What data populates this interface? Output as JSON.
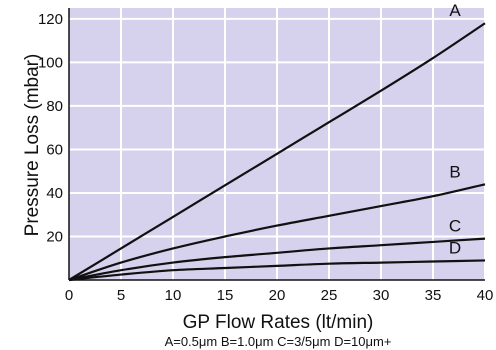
{
  "chart_data": {
    "type": "line",
    "xlabel": "GP Flow Rates (lt/min)",
    "ylabel": "Pressure Loss (mbar)",
    "footnote": "A=0.5μm B=1.0μm C=3/5μm D=10μm+",
    "xlim": [
      0,
      40
    ],
    "ylim": [
      0,
      125
    ],
    "x_ticks": [
      "0",
      "5",
      "10",
      "15",
      "20",
      "25",
      "30",
      "35",
      "40"
    ],
    "y_ticks": [
      "20",
      "40",
      "60",
      "80",
      "100",
      "120"
    ],
    "grid": true,
    "background_color": "#d6d1ec",
    "grid_color": "#ffffff",
    "line_color": "#111111",
    "series": [
      {
        "name": "A",
        "x": [
          0,
          5,
          10,
          15,
          20,
          25,
          30,
          35,
          40
        ],
        "y": [
          0,
          14.5,
          29,
          43.5,
          58,
          72.5,
          87,
          102,
          118
        ]
      },
      {
        "name": "B",
        "x": [
          0,
          5,
          10,
          15,
          20,
          25,
          30,
          35,
          40
        ],
        "y": [
          0,
          8,
          14.5,
          20,
          25,
          29.5,
          34,
          38.5,
          44
        ]
      },
      {
        "name": "C",
        "x": [
          0,
          5,
          10,
          15,
          20,
          25,
          30,
          35,
          40
        ],
        "y": [
          0,
          4.5,
          8,
          10.5,
          12.5,
          14.5,
          16,
          17.5,
          19
        ]
      },
      {
        "name": "D",
        "x": [
          0,
          5,
          10,
          15,
          20,
          25,
          30,
          35,
          40
        ],
        "y": [
          0,
          2.5,
          4.5,
          5.5,
          6.5,
          7.5,
          8,
          8.5,
          9
        ]
      }
    ]
  }
}
